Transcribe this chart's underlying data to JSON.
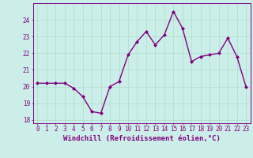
{
  "x": [
    0,
    1,
    2,
    3,
    4,
    5,
    6,
    7,
    8,
    9,
    10,
    11,
    12,
    13,
    14,
    15,
    16,
    17,
    18,
    19,
    20,
    21,
    22,
    23
  ],
  "y": [
    20.2,
    20.2,
    20.2,
    20.2,
    19.9,
    19.4,
    18.5,
    18.4,
    20.0,
    20.3,
    21.9,
    22.7,
    23.3,
    22.5,
    23.1,
    24.5,
    23.5,
    21.5,
    21.8,
    21.9,
    22.0,
    22.9,
    21.8,
    20.0
  ],
  "line_color": "#800080",
  "marker": "D",
  "marker_size": 2.0,
  "line_width": 1.0,
  "bg_color": "#cceee8",
  "grid_color": "#aaddcc",
  "xlabel": "Windchill (Refroidissement éolien,°C)",
  "ylabel": "",
  "xlim": [
    -0.5,
    23.5
  ],
  "ylim": [
    17.8,
    25.0
  ],
  "yticks": [
    18,
    19,
    20,
    21,
    22,
    23,
    24
  ],
  "xticks": [
    0,
    1,
    2,
    3,
    4,
    5,
    6,
    7,
    8,
    9,
    10,
    11,
    12,
    13,
    14,
    15,
    16,
    17,
    18,
    19,
    20,
    21,
    22,
    23
  ],
  "tick_label_fontsize": 5.5,
  "xlabel_fontsize": 6.5,
  "tick_color": "#800080",
  "label_color": "#800080",
  "spine_color": "#800080"
}
